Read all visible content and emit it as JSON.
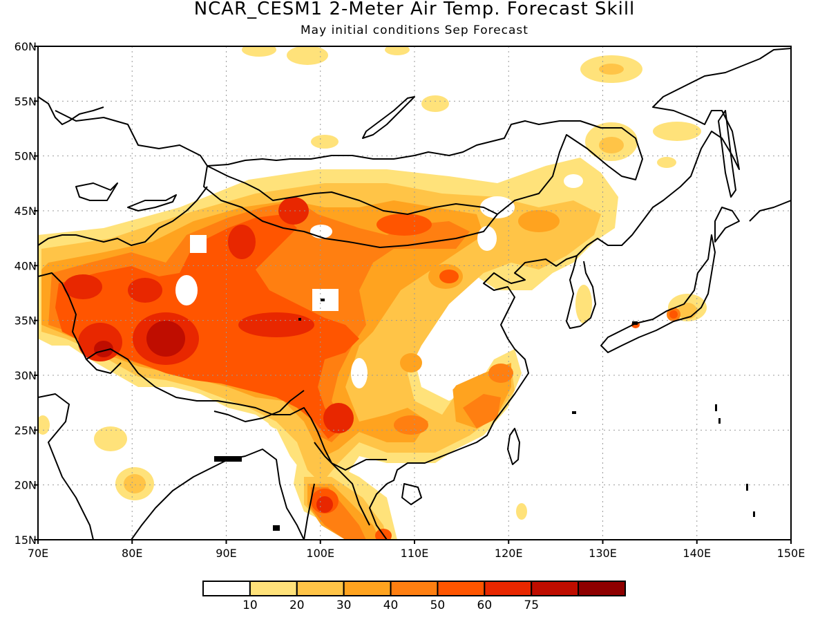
{
  "title": "NCAR_CESM1 2-Meter Air Temp. Forecast Skill",
  "subtitle": "May initial conditions  Sep Forecast",
  "map": {
    "lon_range": [
      70,
      150
    ],
    "lat_range": [
      15,
      60
    ],
    "lon_ticks": [
      "70E",
      "80E",
      "90E",
      "100E",
      "110E",
      "120E",
      "130E",
      "140E",
      "150E"
    ],
    "lat_ticks": [
      "15N",
      "20N",
      "25N",
      "30N",
      "35N",
      "40N",
      "45N",
      "50N",
      "55N",
      "60N"
    ],
    "grid": true,
    "lon_values": [
      70,
      80,
      90,
      100,
      110,
      120,
      130,
      140,
      150
    ],
    "lat_values": [
      15,
      20,
      25,
      30,
      35,
      40,
      45,
      50,
      55,
      60
    ]
  },
  "colorbar": {
    "labels": [
      "10",
      "20",
      "30",
      "40",
      "50",
      "60",
      "75"
    ],
    "colors": [
      "#ffffff",
      "#ffe27a",
      "#ffc447",
      "#ffa31f",
      "#ff7f11",
      "#ff5500",
      "#e82700",
      "#bf0d00",
      "#8e0000"
    ]
  }
}
